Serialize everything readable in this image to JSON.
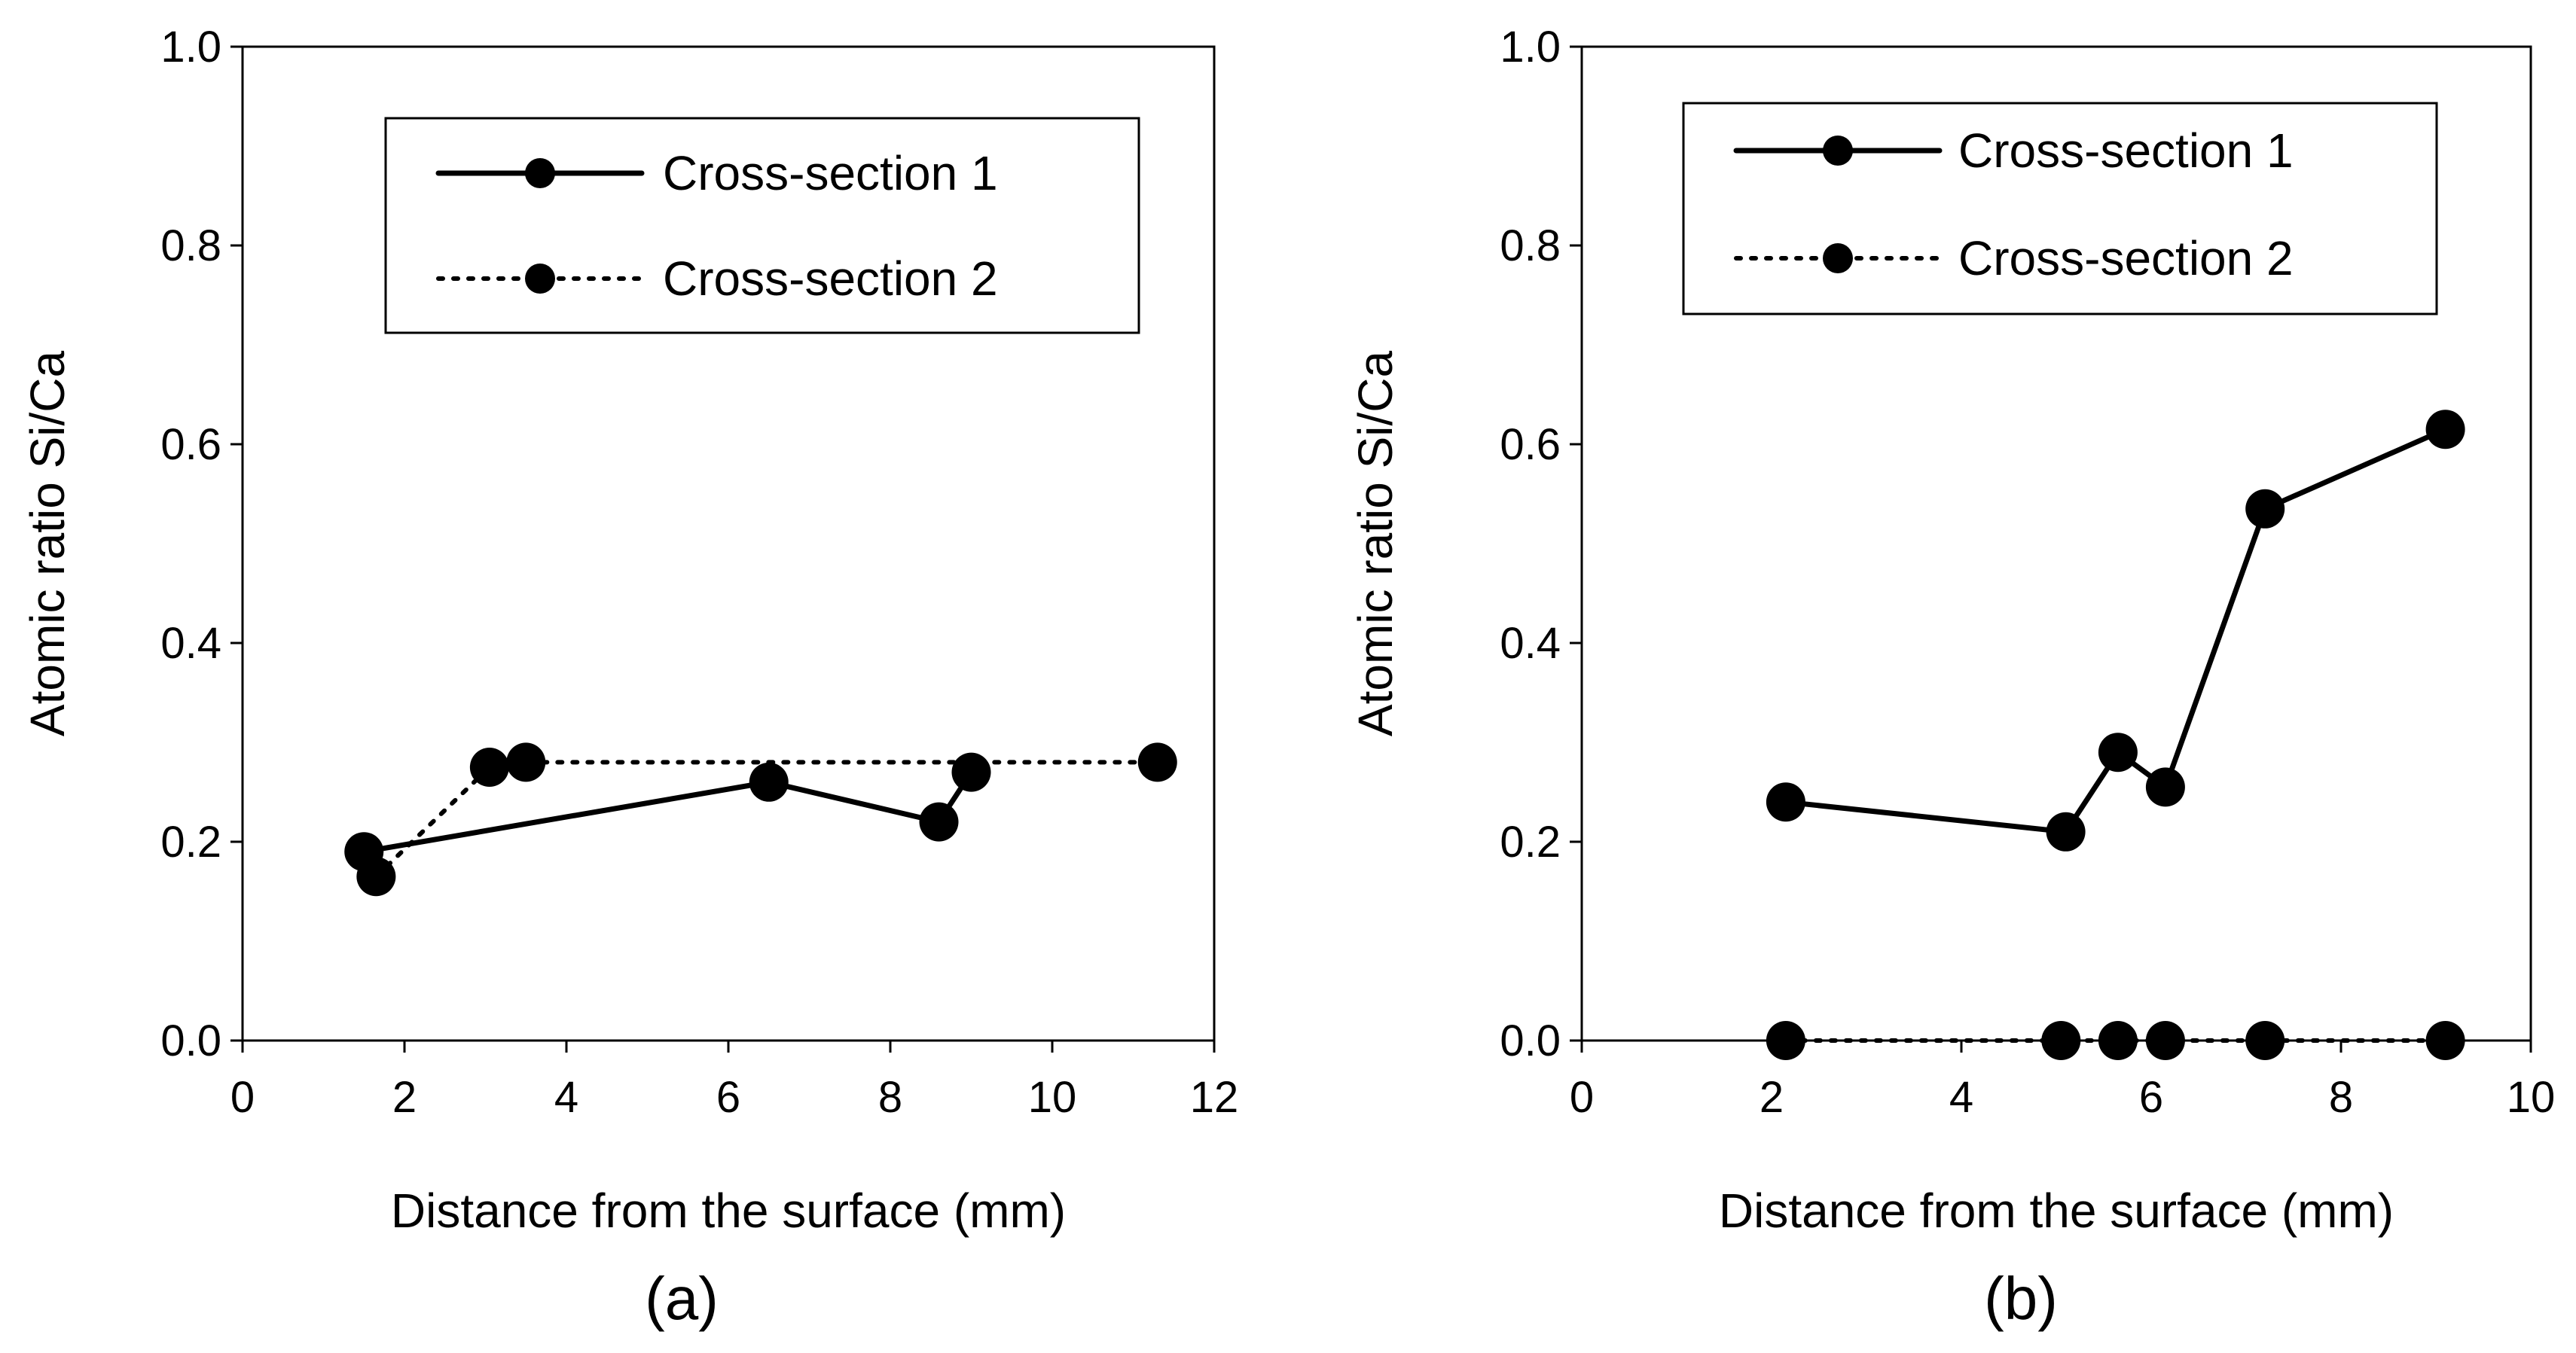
{
  "chart_data": [
    {
      "type": "line",
      "panel_label": "(a)",
      "title": "",
      "xlabel": "Distance from the surface (mm)",
      "ylabel": "Atomic ratio Si/Ca",
      "xlim": [
        0,
        12
      ],
      "ylim": [
        0,
        1.0
      ],
      "xticks": [
        0,
        2,
        4,
        6,
        8,
        10,
        12
      ],
      "xtick_labels": [
        "0",
        "2",
        "4",
        "6",
        "8",
        "10",
        "12"
      ],
      "yticks": [
        0,
        0.2,
        0.4,
        0.6,
        0.8,
        1.0
      ],
      "ytick_labels": [
        "0.0",
        "0.2",
        "0.4",
        "0.6",
        "0.8",
        "1.0"
      ],
      "grid": false,
      "legend_position": "top-right",
      "series": [
        {
          "name": "Cross-section 1",
          "style": "solid",
          "color": "#000000",
          "x": [
            1.5,
            6.5,
            8.6,
            9.0
          ],
          "y": [
            0.19,
            0.26,
            0.22,
            0.27
          ]
        },
        {
          "name": "Cross-section 2",
          "style": "dotted",
          "color": "#000000",
          "x": [
            1.65,
            3.05,
            3.5,
            11.3
          ],
          "y": [
            0.165,
            0.275,
            0.28,
            0.28
          ]
        }
      ]
    },
    {
      "type": "line",
      "panel_label": "(b)",
      "title": "",
      "xlabel": "Distance from the surface (mm)",
      "ylabel": "Atomic ratio Si/Ca",
      "xlim": [
        0,
        10
      ],
      "ylim": [
        0,
        1.0
      ],
      "xticks": [
        0,
        2,
        4,
        6,
        8,
        10
      ],
      "xtick_labels": [
        "0",
        "2",
        "4",
        "6",
        "8",
        "10"
      ],
      "yticks": [
        0,
        0.2,
        0.4,
        0.6,
        0.8,
        1.0
      ],
      "ytick_labels": [
        "0.0",
        "0.2",
        "0.4",
        "0.6",
        "0.8",
        "1.0"
      ],
      "grid": false,
      "legend_position": "top-right",
      "series": [
        {
          "name": "Cross-section 1",
          "style": "solid",
          "color": "#000000",
          "x": [
            2.15,
            5.1,
            5.65,
            6.15,
            7.2,
            9.1
          ],
          "y": [
            0.24,
            0.21,
            0.29,
            0.255,
            0.535,
            0.615
          ]
        },
        {
          "name": "Cross-section 2",
          "style": "dotted",
          "color": "#000000",
          "x": [
            2.15,
            5.05,
            5.65,
            6.15,
            7.2,
            9.1
          ],
          "y": [
            0.0,
            0.0,
            0.0,
            0.0,
            0.0,
            0.0
          ]
        }
      ]
    }
  ]
}
